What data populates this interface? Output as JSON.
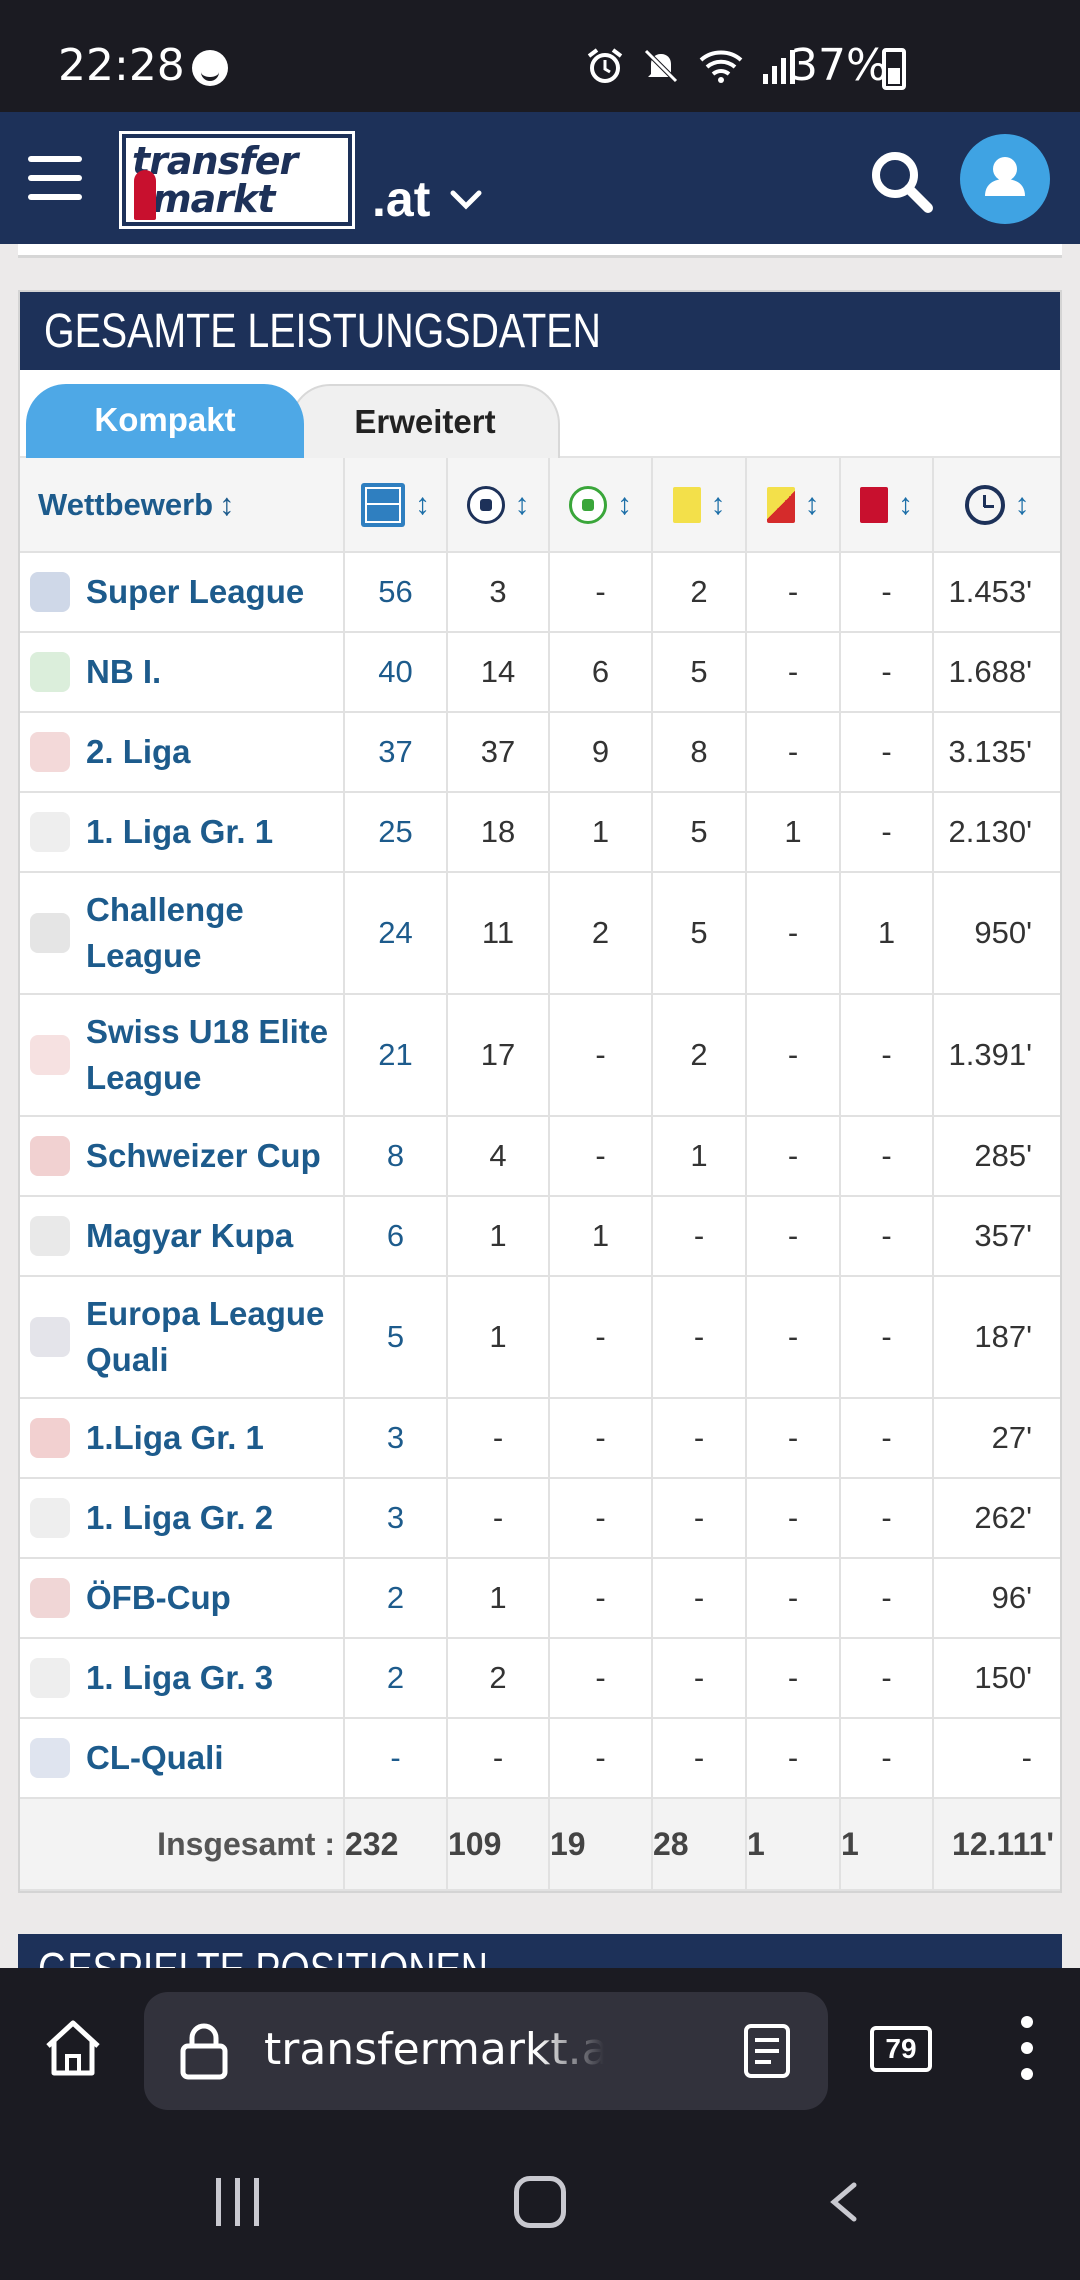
{
  "status_bar": {
    "time": "22:28",
    "battery": "37%",
    "icons": [
      "alarm-icon",
      "mute-icon",
      "wifi-icon",
      "signal-icon",
      "battery-icon"
    ]
  },
  "header": {
    "logo_line1": "transfer",
    "logo_line2": "markt",
    "domain": ".at"
  },
  "section": {
    "title": "GESAMTE LEISTUNGSDATEN",
    "tabs": [
      {
        "label": "Kompakt",
        "active": true
      },
      {
        "label": "Erweitert",
        "active": false
      }
    ],
    "table": {
      "competition_header": "Wettbewerb",
      "sort_arrow": "↕",
      "column_icons": [
        "field-icon",
        "goal-ball-icon",
        "assist-ball-icon",
        "yellow-card-icon",
        "yellow-red-card-icon",
        "red-card-icon",
        "clock-icon"
      ],
      "rows": [
        {
          "competition": "Super League",
          "apps": "56",
          "goals": "3",
          "assists": "-",
          "yellow": "2",
          "yellow_red": "-",
          "red": "-",
          "minutes": "1.453'"
        },
        {
          "competition": "NB I.",
          "apps": "40",
          "goals": "14",
          "assists": "6",
          "yellow": "5",
          "yellow_red": "-",
          "red": "-",
          "minutes": "1.688'"
        },
        {
          "competition": "2. Liga",
          "apps": "37",
          "goals": "37",
          "assists": "9",
          "yellow": "8",
          "yellow_red": "-",
          "red": "-",
          "minutes": "3.135'"
        },
        {
          "competition": "1. Liga Gr. 1",
          "apps": "25",
          "goals": "18",
          "assists": "1",
          "yellow": "5",
          "yellow_red": "1",
          "red": "-",
          "minutes": "2.130'"
        },
        {
          "competition": "Challenge League",
          "apps": "24",
          "goals": "11",
          "assists": "2",
          "yellow": "5",
          "yellow_red": "-",
          "red": "1",
          "minutes": "950'"
        },
        {
          "competition": "Swiss U18 Elite League",
          "apps": "21",
          "goals": "17",
          "assists": "-",
          "yellow": "2",
          "yellow_red": "-",
          "red": "-",
          "minutes": "1.391'"
        },
        {
          "competition": "Schweizer Cup",
          "apps": "8",
          "goals": "4",
          "assists": "-",
          "yellow": "1",
          "yellow_red": "-",
          "red": "-",
          "minutes": "285'"
        },
        {
          "competition": "Magyar Kupa",
          "apps": "6",
          "goals": "1",
          "assists": "1",
          "yellow": "-",
          "yellow_red": "-",
          "red": "-",
          "minutes": "357'"
        },
        {
          "competition": "Europa League Quali",
          "apps": "5",
          "goals": "1",
          "assists": "-",
          "yellow": "-",
          "yellow_red": "-",
          "red": "-",
          "minutes": "187'"
        },
        {
          "competition": "1.Liga Gr. 1",
          "apps": "3",
          "goals": "-",
          "assists": "-",
          "yellow": "-",
          "yellow_red": "-",
          "red": "-",
          "minutes": "27'"
        },
        {
          "competition": "1. Liga Gr. 2",
          "apps": "3",
          "goals": "-",
          "assists": "-",
          "yellow": "-",
          "yellow_red": "-",
          "red": "-",
          "minutes": "262'"
        },
        {
          "competition": "ÖFB-Cup",
          "apps": "2",
          "goals": "1",
          "assists": "-",
          "yellow": "-",
          "yellow_red": "-",
          "red": "-",
          "minutes": "96'"
        },
        {
          "competition": "1. Liga Gr. 3",
          "apps": "2",
          "goals": "2",
          "assists": "-",
          "yellow": "-",
          "yellow_red": "-",
          "red": "-",
          "minutes": "150'"
        },
        {
          "competition": "CL-Quali",
          "apps": "-",
          "goals": "-",
          "assists": "-",
          "yellow": "-",
          "yellow_red": "-",
          "red": "-",
          "minutes": "-"
        }
      ],
      "total": {
        "label": "Insgesamt :",
        "apps": "232",
        "goals": "109",
        "assists": "19",
        "yellow": "28",
        "yellow_red": "1",
        "red": "1",
        "minutes": "12.111'"
      }
    }
  },
  "next_section": {
    "title": "GESPIELTE POSITIONEN"
  },
  "browser": {
    "url": "transfermarkt.at/haris",
    "tab_count": "79"
  },
  "colors": {
    "header_navy": "#1d3159",
    "accent_blue": "#4ea8e6",
    "link_blue": "#1d5b8c"
  }
}
